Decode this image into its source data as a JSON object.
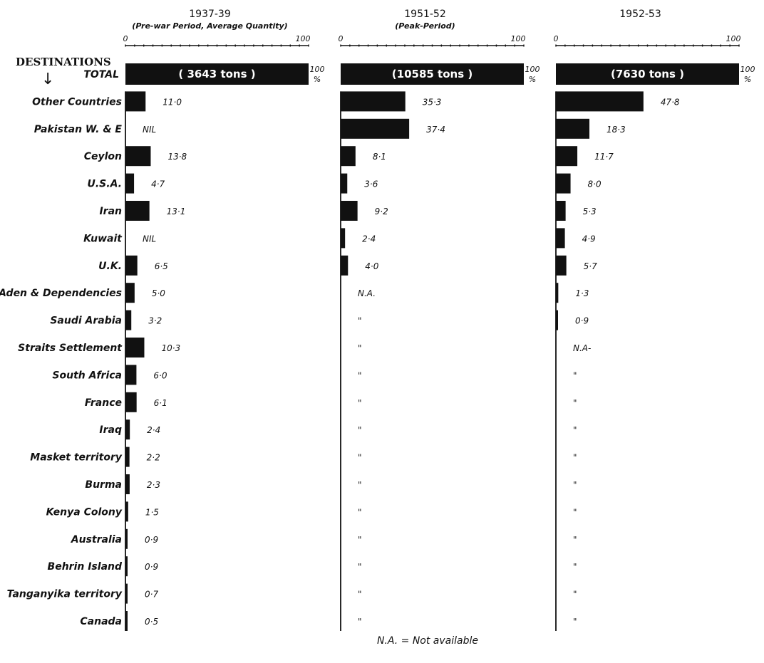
{
  "chart_data": {
    "type": "bar",
    "orientation": "horizontal",
    "destinations_header": "DESTINATIONS",
    "arrow": "↓",
    "axis": {
      "min_label": "0",
      "max_label": "100",
      "xlim": [
        0,
        100
      ]
    },
    "categories": [
      "TOTAL",
      "Other Countries",
      "Pakistan W. & E",
      "Ceylon",
      "U.S.A.",
      "Iran",
      "Kuwait",
      "U.K.",
      "Aden & Dependencies",
      "Saudi Arabia",
      "Straits Settlement",
      "South Africa",
      "France",
      "Iraq",
      "Masket territory",
      "Burma",
      "Kenya Colony",
      "Australia",
      "Behrin Island",
      "Tanganyika territory",
      "Canada"
    ],
    "series": [
      {
        "name": "1937-39",
        "subtitle": "(Pre-war Period, Average Quantity)",
        "total_label": "( 3643 tons )",
        "total_percent_label": "100 %",
        "values": [
          100,
          11.0,
          0,
          13.8,
          4.7,
          13.1,
          0,
          6.5,
          5.0,
          3.2,
          10.3,
          6.0,
          6.1,
          2.4,
          2.2,
          2.3,
          1.5,
          0.9,
          0.9,
          0.7,
          0.5
        ],
        "value_labels": [
          "",
          "11·0",
          "NIL",
          "13·8",
          "4·7",
          "13·1",
          "NIL",
          "6·5",
          "5·0",
          "3·2",
          "10·3",
          "6·0",
          "6·1",
          "2·4",
          "2·2",
          "2·3",
          "1·5",
          "0·9",
          "0·9",
          "0·7",
          "0·5"
        ]
      },
      {
        "name": "1951-52",
        "subtitle": "(Peak-Period)",
        "total_label": "(10585 tons )",
        "total_percent_label": "100 %",
        "values": [
          100,
          35.3,
          37.4,
          8.1,
          3.6,
          9.2,
          2.4,
          4.0,
          null,
          null,
          null,
          null,
          null,
          null,
          null,
          null,
          null,
          null,
          null,
          null,
          null
        ],
        "value_labels": [
          "",
          "35·3",
          "37·4",
          "8·1",
          "3·6",
          "9·2",
          "2·4",
          "4·0",
          "N.A.",
          "\"",
          "\"",
          "\"",
          "\"",
          "\"",
          "\"",
          "\"",
          "\"",
          "\"",
          "\"",
          "\"",
          "\""
        ]
      },
      {
        "name": "1952-53",
        "subtitle": "",
        "total_label": "(7630 tons )",
        "total_percent_label": "100 %",
        "values": [
          100,
          47.8,
          18.3,
          11.7,
          8.0,
          5.3,
          4.9,
          5.7,
          1.3,
          0.9,
          null,
          null,
          null,
          null,
          null,
          null,
          null,
          null,
          null,
          null,
          null
        ],
        "value_labels": [
          "",
          "47·8",
          "18·3",
          "11·7",
          "8·0",
          "5·3",
          "4·9",
          "5·7",
          "1·3",
          "0·9",
          "N.A-",
          "\"",
          "\"",
          "\"",
          "\"",
          "\"",
          "\"",
          "\"",
          "\"",
          "\"",
          "\""
        ]
      }
    ],
    "footnote": "N.A. = Not available"
  }
}
